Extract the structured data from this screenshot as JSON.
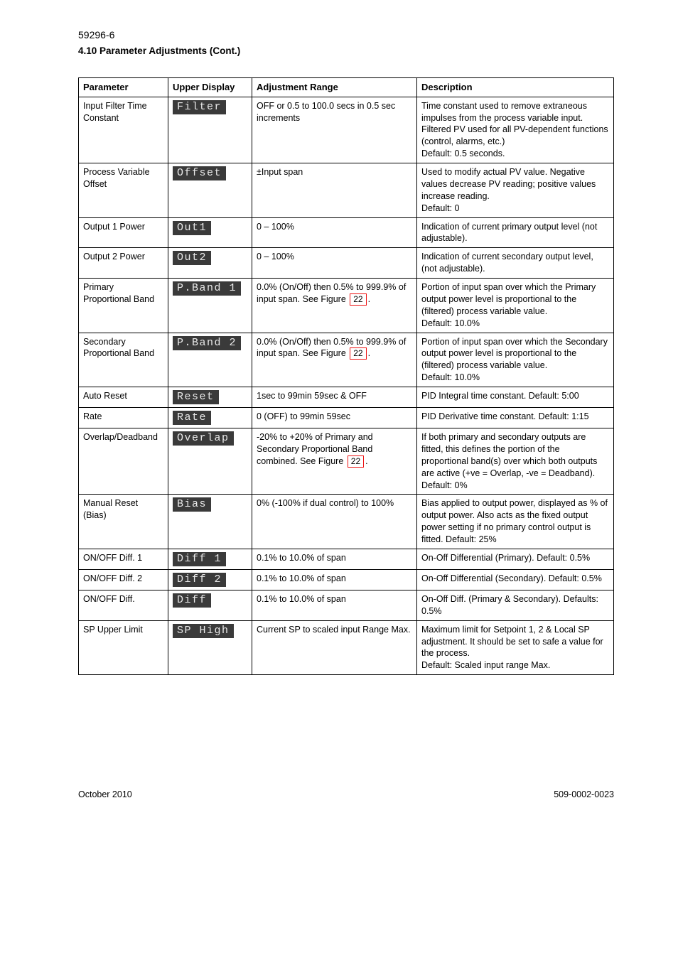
{
  "doc": {
    "title_line": "59296-6",
    "subtitle": "4.10    Parameter Adjustments (Cont.)",
    "footer_left": "October 2010",
    "footer_right": "509-0002-0023"
  },
  "columns": {
    "c1": "Parameter",
    "c2": "Upper Display",
    "c3": "Adjustment Range",
    "c4": "Description"
  },
  "rows": [
    {
      "param": "Input Filter Time Constant",
      "display_main": "Filter",
      "display_sub": "",
      "range": "OFF or 0.5 to 100.0 secs in 0.5 sec increments",
      "desc": "Time constant used to remove extraneous impulses from the process variable input. Filtered PV used for all PV-dependent functions (control, alarms, etc.)",
      "desc_default": "Default: 0.5 seconds."
    },
    {
      "param": "Process Variable Offset",
      "display_main": "Offset",
      "display_sub": "",
      "range": "±Input span",
      "desc": "Used to modify actual PV value. Negative values decrease PV reading; positive values increase reading.",
      "desc_default": "Default: 0"
    },
    {
      "param": "Output 1 Power",
      "display_main": "Out1",
      "display_sub": "",
      "range": "0 – 100%",
      "desc": "Indication of current primary output level (not adjustable).",
      "desc_default": ""
    },
    {
      "param": "Output 2 Power",
      "display_main": "Out2",
      "display_sub": "",
      "range": "0 – 100%",
      "desc": "Indication of current secondary output level, (not adjustable).",
      "desc_default": ""
    },
    {
      "param": "Primary Proportional Band",
      "display_main": "P.Band 1",
      "display_sub": "",
      "range": "0.0% (On/Off) then 0.5% to 999.9% of input span.  See Figure 22.",
      "figref": "22",
      "desc": "Portion of input span over which the Primary output power level is proportional to the (filtered) process variable value.",
      "desc_default": "Default: 10.0%"
    },
    {
      "param": "Secondary Proportional Band",
      "display_main": "P.Band 2",
      "display_sub": "",
      "range": "0.0% (On/Off) then 0.5% to 999.9% of input span.  See Figure 22.",
      "figref": "22",
      "desc": "Portion of input span over which the Secondary output power level is proportional to the (filtered) process variable value.",
      "desc_default": "Default: 10.0%"
    },
    {
      "param": "Auto Reset",
      "display_main": "Reset",
      "display_sub": "",
      "range": "1sec to 99min 59sec & OFF",
      "desc": "PID Integral time constant. Default: 5:00"
    },
    {
      "param": "Rate",
      "display_main": "Rate",
      "display_sub": "",
      "range": "0 (OFF) to 99min 59sec",
      "desc": "PID Derivative time constant. Default: 1:15"
    },
    {
      "param": "Overlap/Deadband",
      "display_main": "Overlap",
      "display_sub": "",
      "range": "-20% to +20% of Primary and Secondary Proportional Band combined. See Figure 22.",
      "figref": "22",
      "desc": "If both primary and secondary outputs are fitted, this defines the portion of the proportional band(s) over which both outputs are active (+ve = Overlap, -ve = Deadband). Default: 0%"
    },
    {
      "param": "Manual Reset (Bias)",
      "display_main": "Bias",
      "display_sub": "",
      "range": "0% (-100% if dual control) to 100%",
      "desc": "Bias applied to output power, displayed as % of output power. Also acts as the fixed output power setting if no primary control output is fitted. Default: 25%"
    },
    {
      "param": "ON/OFF Diff. 1",
      "display_main": "Diff 1",
      "display_sub": "",
      "range": "0.1% to 10.0% of span",
      "desc": "On-Off Differential (Primary). Default: 0.5%"
    },
    {
      "param": "ON/OFF Diff. 2",
      "display_main": "Diff 2",
      "display_sub": "",
      "range": "0.1% to 10.0% of span",
      "desc": "On-Off Differential (Secondary). Default: 0.5%"
    },
    {
      "param": "ON/OFF Diff.",
      "display_main": "Diff",
      "display_sub": "",
      "range": "0.1% to 10.0% of span",
      "desc": "On-Off Diff. (Primary & Secondary). Defaults: 0.5%"
    },
    {
      "param": "SP Upper Limit",
      "display_main": "SP High",
      "display_sub": "",
      "range": "Current SP to scaled input Range Max.",
      "desc": "Maximum limit for Setpoint 1, 2 & Local SP adjustment. It should be set to safe a value for the process.",
      "desc_default": "Default: Scaled input range Max."
    }
  ]
}
